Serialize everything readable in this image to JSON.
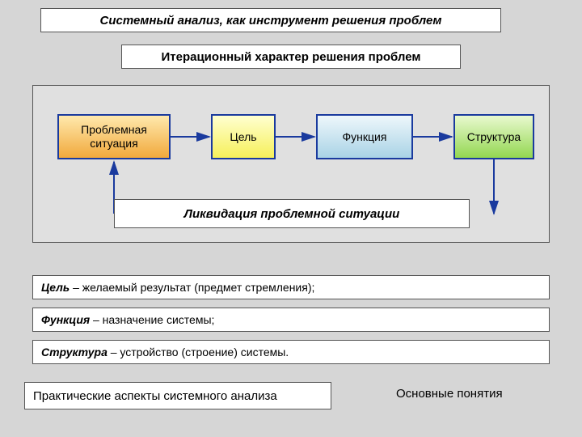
{
  "title": "Системный анализ, как инструмент решения проблем",
  "subtitle": "Итерационный характер решения проблем",
  "diagram": {
    "background_color": "#e0e0e0",
    "nodes": [
      {
        "label": "Проблемная\nситуация",
        "border_color": "#1a3a9e",
        "gradient_from": "#ffe9ad",
        "gradient_to": "#f1a93c"
      },
      {
        "label": "Цель",
        "border_color": "#1a3a9e",
        "gradient_from": "#ffffd0",
        "gradient_to": "#f6f05a"
      },
      {
        "label": "Функция",
        "border_color": "#1a3a9e",
        "gradient_from": "#eef7fb",
        "gradient_to": "#a9d3e6"
      },
      {
        "label": "Структура",
        "border_color": "#1a3a9e",
        "gradient_from": "#e9f9cf",
        "gradient_to": "#93d751"
      }
    ],
    "arrow_color": "#1a3a9e",
    "liquidation_label": "Ликвидация проблемной ситуации"
  },
  "definitions": [
    {
      "term": "Цель",
      "text": " – желаемый результат (предмет стремления);"
    },
    {
      "term": "Функция",
      "text": " – назначение системы;"
    },
    {
      "term": "Структура",
      "text": " – устройство (строение) системы."
    }
  ],
  "footer_left": "Практические аспекты системного анализа",
  "footer_right": "Основные понятия"
}
